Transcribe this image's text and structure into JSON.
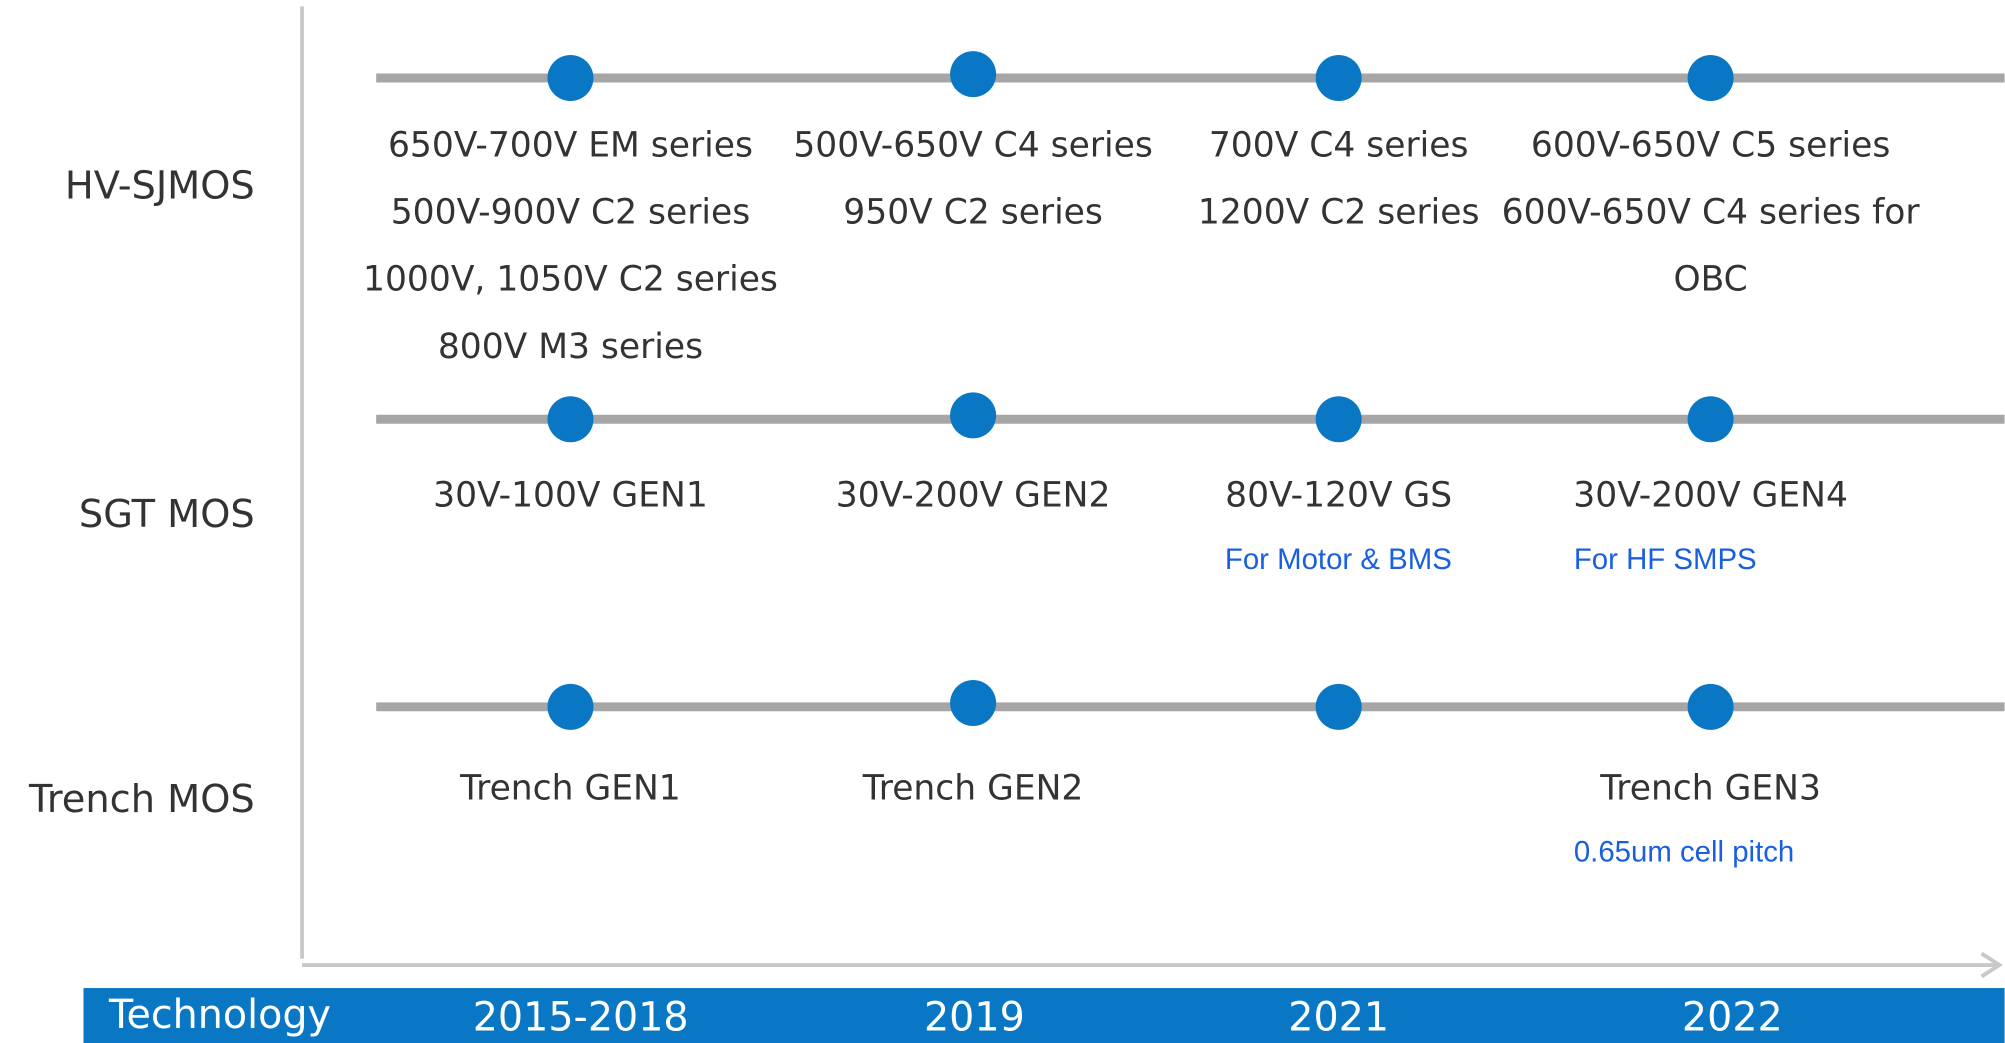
{
  "axis_label": "Technology",
  "columns": [
    "2015-2018",
    "2019",
    "2021",
    "2022"
  ],
  "rows": [
    {
      "label": "HV-SJMOS",
      "cells": [
        {
          "lines": [
            "650V-700V EM series",
            "500V-900V C2 series",
            "1000V, 1050V C2 series",
            "800V M3 series"
          ]
        },
        {
          "lines": [
            "500V-650V C4 series",
            "950V C2 series"
          ]
        },
        {
          "lines": [
            "700V C4 series",
            "1200V C2 series"
          ]
        },
        {
          "lines": [
            "600V-650V C5 series",
            "600V-650V C4 series for",
            "OBC"
          ]
        }
      ]
    },
    {
      "label": "SGT MOS",
      "cells": [
        {
          "lines": [
            "30V-100V GEN1"
          ]
        },
        {
          "lines": [
            "30V-200V GEN2"
          ]
        },
        {
          "lines": [
            "80V-120V GS"
          ],
          "note": "For Motor & BMS"
        },
        {
          "lines": [
            "30V-200V GEN4"
          ],
          "note": "For HF SMPS"
        }
      ]
    },
    {
      "label": "Trench MOS",
      "cells": [
        {
          "lines": [
            "Trench GEN1"
          ]
        },
        {
          "lines": [
            "Trench GEN2"
          ]
        },
        {
          "lines": []
        },
        {
          "lines": [
            "Trench GEN3"
          ],
          "note": "0.65um cell pitch"
        }
      ]
    }
  ]
}
